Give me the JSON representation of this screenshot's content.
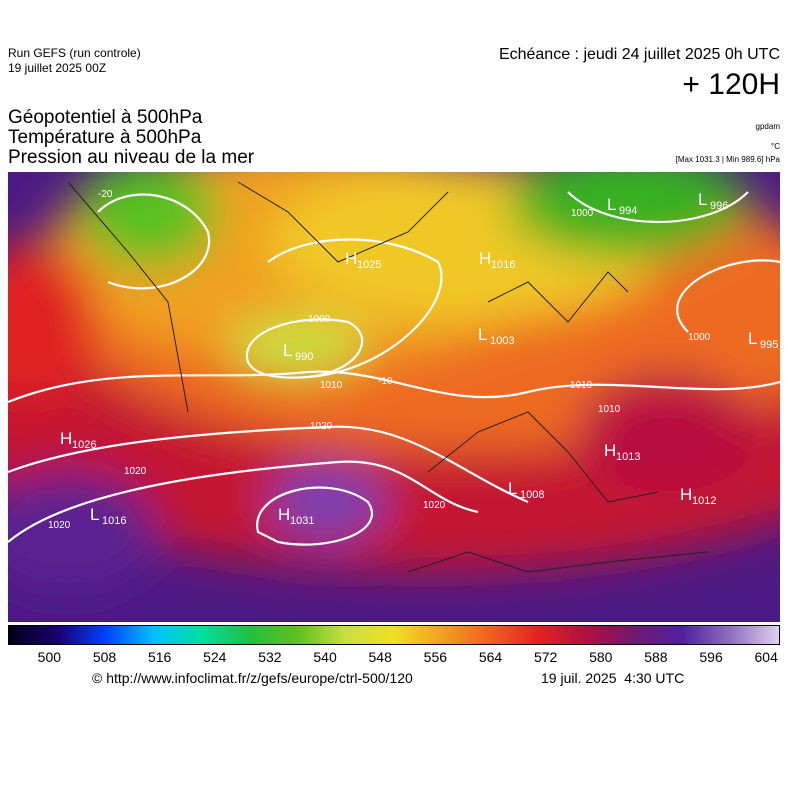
{
  "header": {
    "run": "Run GEFS (run controle)",
    "run_date": "19 juillet 2025 00Z",
    "echeance": "Echéance : jeudi 24 juillet 2025 0h UTC",
    "lead": "+ 120H"
  },
  "titles": [
    "Géopotentiel à 500hPa",
    "Température à 500hPa",
    "Pression au niveau de la mer"
  ],
  "units": [
    "gpdam",
    "°C",
    "[Max 1031.3 | Min 989.6] hPa"
  ],
  "centers": [
    {
      "type": "H",
      "value": "1016"
    },
    {
      "type": "L",
      "value": "990"
    },
    {
      "type": "L",
      "value": "994"
    },
    {
      "type": "L",
      "value": "996"
    },
    {
      "type": "H",
      "value": "1025"
    },
    {
      "type": "L",
      "value": "1003"
    },
    {
      "type": "H",
      "value": "1026"
    },
    {
      "type": "L",
      "value": "1016"
    },
    {
      "type": "H",
      "value": "1031"
    },
    {
      "type": "L",
      "value": "1008"
    },
    {
      "type": "H",
      "value": "1013"
    },
    {
      "type": "H",
      "value": "1012"
    },
    {
      "type": "L",
      "value": "995"
    }
  ],
  "isobar_labels": [
    "1020",
    "1020",
    "1020",
    "1020",
    "1010",
    "1010",
    "1000",
    "1000",
    "1000",
    "1010",
    "-10",
    "-20"
  ],
  "colorbar": {
    "lim": [
      494,
      606
    ],
    "ticks": [
      500,
      508,
      516,
      524,
      532,
      540,
      548,
      556,
      564,
      572,
      580,
      588,
      596,
      604
    ]
  },
  "footer": {
    "url": "© http://www.infoclimat.fr/z/gefs/europe/ctrl-500/120",
    "issued": "19 juil. 2025  4:30 UTC"
  }
}
